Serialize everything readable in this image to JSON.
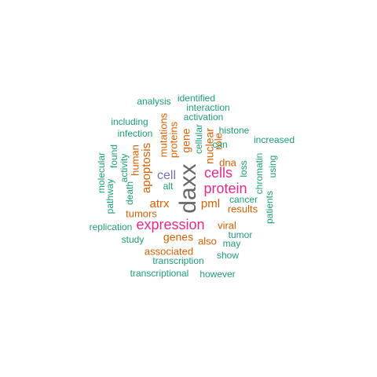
{
  "words": [
    {
      "text": "daxx",
      "color": "#666666"
    },
    {
      "text": "expression",
      "color": "#E7298A"
    },
    {
      "text": "protein",
      "color": "#E7298A"
    },
    {
      "text": "cells",
      "color": "#E7298A"
    },
    {
      "text": "cell",
      "color": "#7570B3"
    },
    {
      "text": "apoptosis",
      "color": "#D95F02"
    },
    {
      "text": "atrx",
      "color": "#D95F02"
    },
    {
      "text": "pml",
      "color": "#D95F02"
    },
    {
      "text": "genes",
      "color": "#D95F02"
    },
    {
      "text": "gene",
      "color": "#D95F02"
    },
    {
      "text": "nuclear",
      "color": "#D95F02"
    },
    {
      "text": "proteins",
      "color": "#D95F02"
    },
    {
      "text": "mutations",
      "color": "#D95F02"
    },
    {
      "text": "human",
      "color": "#D95F02"
    },
    {
      "text": "role",
      "color": "#D95F02"
    },
    {
      "text": "dna",
      "color": "#D95F02"
    },
    {
      "text": "tumors",
      "color": "#D95F02"
    },
    {
      "text": "viral",
      "color": "#D95F02"
    },
    {
      "text": "results",
      "color": "#D95F02"
    },
    {
      "text": "associated",
      "color": "#D95F02"
    },
    {
      "text": "also",
      "color": "#D95F02"
    },
    {
      "text": "alt",
      "color": "#1B9E77"
    },
    {
      "text": "identified",
      "color": "#1B9E77"
    },
    {
      "text": "analysis",
      "color": "#1B9E77"
    },
    {
      "text": "interaction",
      "color": "#1B9E77"
    },
    {
      "text": "activation",
      "color": "#1B9E77"
    },
    {
      "text": "including",
      "color": "#1B9E77"
    },
    {
      "text": "histone",
      "color": "#1B9E77"
    },
    {
      "text": "infection",
      "color": "#1B9E77"
    },
    {
      "text": "increased",
      "color": "#1B9E77"
    },
    {
      "text": "cellular",
      "color": "#1B9E77"
    },
    {
      "text": "can",
      "color": "#1B9E77"
    },
    {
      "text": "found",
      "color": "#1B9E77"
    },
    {
      "text": "activity",
      "color": "#1B9E77"
    },
    {
      "text": "loss",
      "color": "#1B9E77"
    },
    {
      "text": "chromatin",
      "color": "#1B9E77"
    },
    {
      "text": "using",
      "color": "#1B9E77"
    },
    {
      "text": "molecular",
      "color": "#1B9E77"
    },
    {
      "text": "pathway",
      "color": "#1B9E77"
    },
    {
      "text": "death",
      "color": "#1B9E77"
    },
    {
      "text": "cancer",
      "color": "#1B9E77"
    },
    {
      "text": "patients",
      "color": "#1B9E77"
    },
    {
      "text": "replication",
      "color": "#1B9E77"
    },
    {
      "text": "tumor",
      "color": "#1B9E77"
    },
    {
      "text": "study",
      "color": "#1B9E77"
    },
    {
      "text": "may",
      "color": "#1B9E77"
    },
    {
      "text": "transcription",
      "color": "#1B9E77"
    },
    {
      "text": "show",
      "color": "#1B9E77"
    },
    {
      "text": "transcriptional",
      "color": "#1B9E77"
    },
    {
      "text": "however",
      "color": "#1B9E77"
    }
  ]
}
